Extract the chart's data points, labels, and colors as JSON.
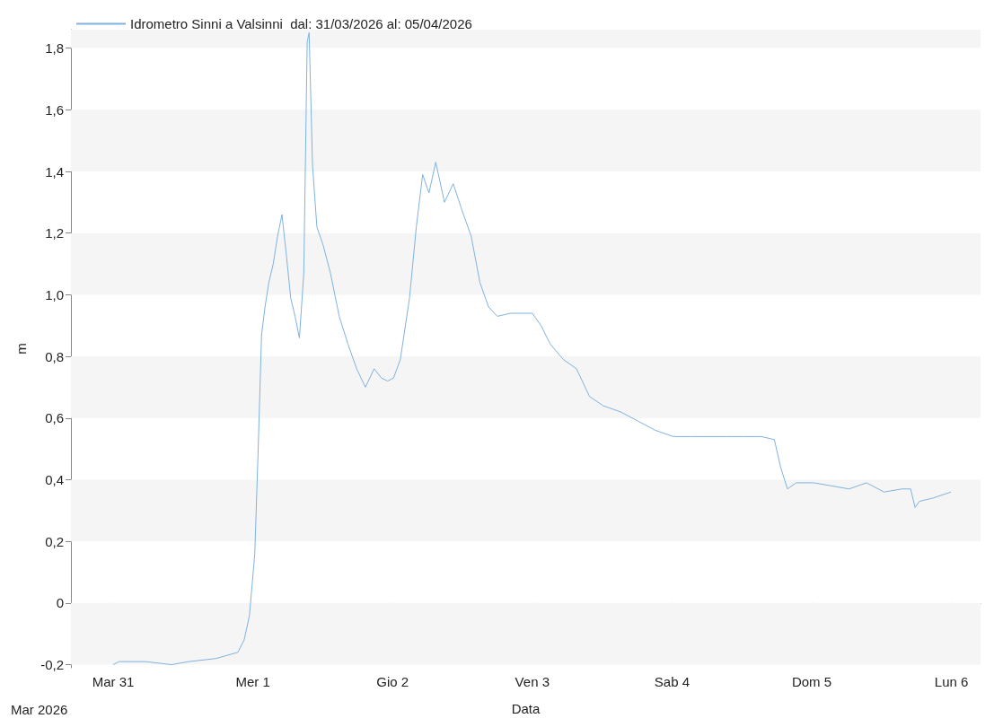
{
  "chart_data": {
    "type": "line",
    "xlabel": "Data",
    "ylabel": "m",
    "annotations": [
      "Mar 2026"
    ],
    "legend": "top left",
    "grid": true,
    "marker": "none",
    "line_style": "solid",
    "xlim": [
      "2026-03-30T16:45",
      "2026-04-06T05:00"
    ],
    "xticks": [
      {
        "value": "2026-03-31T00:00",
        "label": "Mar 31"
      },
      {
        "value": "2026-04-01T00:00",
        "label": "Mer 1"
      },
      {
        "value": "2026-04-02T00:00",
        "label": "Gio 2"
      },
      {
        "value": "2026-04-03T00:00",
        "label": "Ven 3"
      },
      {
        "value": "2026-04-04T00:00",
        "label": "Sab 4"
      },
      {
        "value": "2026-04-05T00:00",
        "label": "Dom 5"
      },
      {
        "value": "2026-04-06T00:00",
        "label": "Lun 6"
      }
    ],
    "ylim": [
      -0.21,
      1.86
    ],
    "yticks": [
      {
        "value": -0.2,
        "label": "-0,2"
      },
      0,
      {
        "value": 0.2,
        "label": "0,2"
      },
      {
        "value": 0.4,
        "label": "0,4"
      },
      {
        "value": 0.6,
        "label": "0,6"
      },
      {
        "value": 0.8,
        "label": "0,8"
      },
      {
        "value": 1.0,
        "label": "1,0"
      },
      {
        "value": 1.2,
        "label": "1,2"
      },
      {
        "value": 1.4,
        "label": "1,4"
      },
      {
        "value": 1.6,
        "label": "1,6"
      },
      {
        "value": 1.8,
        "label": "1,8"
      }
    ],
    "series": [
      {
        "name": "Idrometro Sinni a Valsinni  dal: 31/03/2026 al: 05/04/2026",
        "color": "#7fb2df",
        "x": [
          "2026-03-31T00:00",
          "2026-03-31T01:00",
          "2026-03-31T05:35",
          "2026-03-31T10:00",
          "2026-03-31T13:00",
          "2026-03-31T17:40",
          "2026-03-31T21:25",
          "2026-03-31T22:30",
          "2026-03-31T23:25",
          "2026-04-01T00:20",
          "2026-04-01T00:55",
          "2026-04-01T01:30",
          "2026-04-01T02:05",
          "2026-04-01T02:45",
          "2026-04-01T03:30",
          "2026-04-01T04:15",
          "2026-04-01T05:00",
          "2026-04-01T05:45",
          "2026-04-01T06:30",
          "2026-04-01T07:15",
          "2026-04-01T08:00",
          "2026-04-01T08:45",
          "2026-04-01T09:20",
          "2026-04-01T09:40",
          "2026-04-01T10:15",
          "2026-04-01T11:00",
          "2026-04-01T12:05",
          "2026-04-01T13:20",
          "2026-04-01T14:50",
          "2026-04-01T16:20",
          "2026-04-01T17:50",
          "2026-04-01T19:20",
          "2026-04-01T20:50",
          "2026-04-01T22:05",
          "2026-04-01T23:10",
          "2026-04-02T00:10",
          "2026-04-02T01:20",
          "2026-04-02T02:55",
          "2026-04-02T04:05",
          "2026-04-02T05:10",
          "2026-04-02T06:15",
          "2026-04-02T07:25",
          "2026-04-02T08:55",
          "2026-04-02T10:25",
          "2026-04-02T12:00",
          "2026-04-02T13:30",
          "2026-04-02T15:00",
          "2026-04-02T16:30",
          "2026-04-02T18:00",
          "2026-04-02T20:15",
          "2026-04-02T22:30",
          "2026-04-03T00:00",
          "2026-04-03T01:30",
          "2026-04-03T03:05",
          "2026-04-03T05:20",
          "2026-04-03T07:35",
          "2026-04-03T09:50",
          "2026-04-03T12:10",
          "2026-04-03T15:10",
          "2026-04-03T18:10",
          "2026-04-03T21:10",
          "2026-04-04T00:15",
          "2026-04-04T03:15",
          "2026-04-04T06:15",
          "2026-04-04T09:15",
          "2026-04-04T12:20",
          "2026-04-04T15:20",
          "2026-04-04T17:35",
          "2026-04-04T18:40",
          "2026-04-04T19:50",
          "2026-04-04T21:20",
          "2026-04-05T00:20",
          "2026-04-05T03:25",
          "2026-04-05T06:25",
          "2026-04-05T09:25",
          "2026-04-05T12:25",
          "2026-04-05T15:30",
          "2026-04-05T17:00",
          "2026-04-05T17:45",
          "2026-04-05T18:30",
          "2026-04-05T20:45",
          "2026-04-05T23:55"
        ],
        "values": [
          -0.2,
          -0.19,
          -0.19,
          -0.2,
          -0.19,
          -0.18,
          -0.16,
          -0.12,
          -0.04,
          0.16,
          0.5,
          0.87,
          0.96,
          1.04,
          1.1,
          1.19,
          1.26,
          1.13,
          0.99,
          0.93,
          0.86,
          1.07,
          1.82,
          1.85,
          1.42,
          1.22,
          1.16,
          1.07,
          0.93,
          0.84,
          0.76,
          0.7,
          0.76,
          0.73,
          0.72,
          0.73,
          0.79,
          0.99,
          1.22,
          1.39,
          1.33,
          1.43,
          1.3,
          1.36,
          1.27,
          1.19,
          1.04,
          0.96,
          0.93,
          0.94,
          0.94,
          0.94,
          0.9,
          0.84,
          0.79,
          0.76,
          0.67,
          0.64,
          0.62,
          0.59,
          0.56,
          0.54,
          0.54,
          0.54,
          0.54,
          0.54,
          0.54,
          0.53,
          0.44,
          0.37,
          0.39,
          0.39,
          0.38,
          0.37,
          0.39,
          0.36,
          0.37,
          0.37,
          0.31,
          0.33,
          0.34,
          0.36
        ]
      }
    ]
  }
}
